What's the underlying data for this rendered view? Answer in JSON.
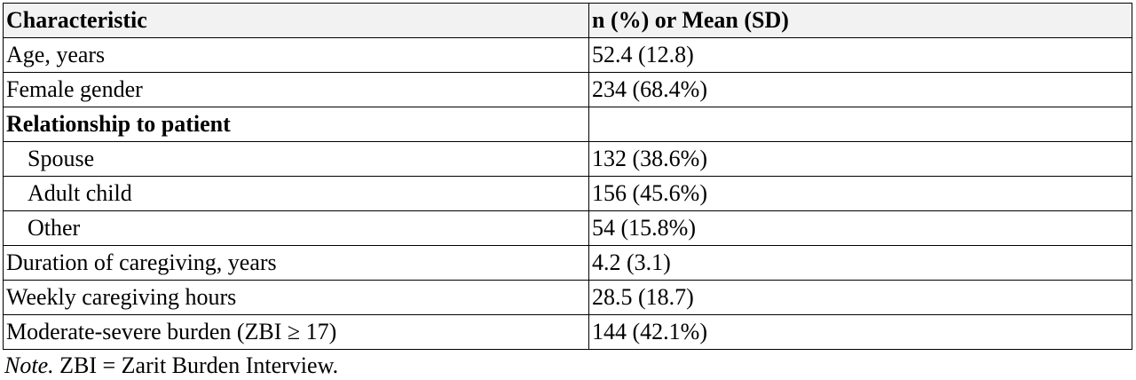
{
  "table": {
    "header": [
      "Characteristic",
      "n (%) or Mean (SD)"
    ],
    "rows": [
      [
        "Age, years",
        "52.4 (12.8)"
      ],
      [
        "Female gender",
        "234 (68.4%)"
      ],
      [
        "Relationship to patient"
      ],
      [
        "Spouse",
        "132 (38.6%)"
      ],
      [
        "Adult child",
        "156 (45.6%)"
      ],
      [
        "Other",
        "54 (15.8%)"
      ],
      [
        "Duration of caregiving, years",
        "4.2 (3.1)"
      ],
      [
        "Weekly caregiving hours",
        "28.5 (18.7)"
      ],
      [
        "Moderate-severe burden (ZBI ≥ 17)",
        "144 (42.1%)"
      ]
    ]
  },
  "note": {
    "label": "Note.",
    "text": "ZBI = Zarit Burden Interview."
  }
}
